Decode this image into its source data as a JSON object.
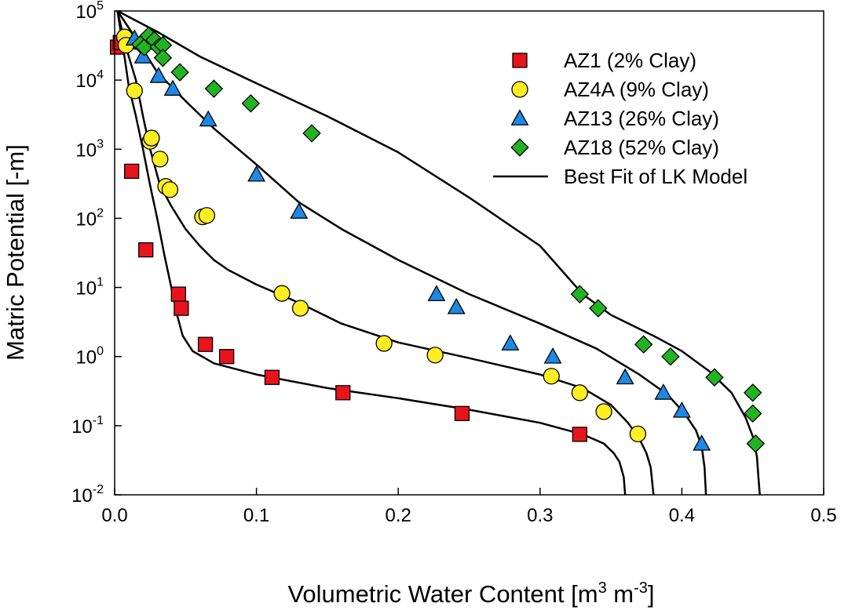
{
  "chart_data": {
    "type": "scatter",
    "title": "",
    "xlabel": {
      "text": "Volumetric Water Content [m",
      "sup1": "3",
      "mid": " m",
      "sup2": "-3",
      "end": "]"
    },
    "ylabel": "Matric Potential [-m]",
    "xlim": [
      0.0,
      0.5
    ],
    "ylim_log10": [
      -2,
      5
    ],
    "y_scale": "log",
    "grid": false,
    "legend_position": "top-right",
    "x_ticks": [
      {
        "value": 0.0,
        "label": "0.0"
      },
      {
        "value": 0.1,
        "label": "0.1"
      },
      {
        "value": 0.2,
        "label": "0.2"
      },
      {
        "value": 0.3,
        "label": "0.3"
      },
      {
        "value": 0.4,
        "label": "0.4"
      },
      {
        "value": 0.5,
        "label": "0.5"
      }
    ],
    "y_ticks": [
      {
        "exp": 5,
        "base": "10",
        "sup": "5"
      },
      {
        "exp": 4,
        "base": "10",
        "sup": "4"
      },
      {
        "exp": 3,
        "base": "10",
        "sup": "3"
      },
      {
        "exp": 2,
        "base": "10",
        "sup": "2"
      },
      {
        "exp": 1,
        "base": "10",
        "sup": "1"
      },
      {
        "exp": 0,
        "base": "10",
        "sup": "0"
      },
      {
        "exp": -1,
        "base": "10",
        "sup": "-1"
      },
      {
        "exp": -2,
        "base": "10",
        "sup": "-2"
      }
    ],
    "series": [
      {
        "name": "AZ1 (2% Clay)",
        "marker": "square",
        "color": "#e8141c",
        "points": [
          [
            0.002,
            30000
          ],
          [
            0.004,
            35000
          ],
          [
            0.012,
            480
          ],
          [
            0.022,
            35
          ],
          [
            0.045,
            8
          ],
          [
            0.047,
            5
          ],
          [
            0.064,
            1.5
          ],
          [
            0.079,
            1.0
          ],
          [
            0.111,
            0.5
          ],
          [
            0.161,
            0.3
          ],
          [
            0.245,
            0.15
          ],
          [
            0.328,
            0.075
          ]
        ]
      },
      {
        "name": "AZ4A (9% Clay)",
        "marker": "circle",
        "color": "#ffee22",
        "points": [
          [
            0.007,
            42000
          ],
          [
            0.008,
            32000
          ],
          [
            0.014,
            7000
          ],
          [
            0.025,
            1300
          ],
          [
            0.026,
            1450
          ],
          [
            0.032,
            720
          ],
          [
            0.036,
            290
          ],
          [
            0.039,
            260
          ],
          [
            0.062,
            105
          ],
          [
            0.065,
            110
          ],
          [
            0.118,
            8.2
          ],
          [
            0.131,
            5.0
          ],
          [
            0.19,
            1.55
          ],
          [
            0.226,
            1.05
          ],
          [
            0.308,
            0.52
          ],
          [
            0.328,
            0.3
          ],
          [
            0.345,
            0.16
          ],
          [
            0.369,
            0.076
          ]
        ]
      },
      {
        "name": "AZ13 (26% Clay)",
        "marker": "triangle",
        "color": "#1e88e5",
        "points": [
          [
            0.014,
            40000
          ],
          [
            0.019,
            35000
          ],
          [
            0.02,
            22000
          ],
          [
            0.031,
            11500
          ],
          [
            0.041,
            7500
          ],
          [
            0.066,
            2700
          ],
          [
            0.1,
            430
          ],
          [
            0.13,
            125
          ],
          [
            0.227,
            8.0
          ],
          [
            0.241,
            5.2
          ],
          [
            0.279,
            1.55
          ],
          [
            0.309,
            1.0
          ],
          [
            0.36,
            0.5
          ],
          [
            0.387,
            0.3
          ],
          [
            0.4,
            0.165
          ],
          [
            0.414,
            0.055
          ]
        ]
      },
      {
        "name": "AZ18 (52% Clay)",
        "marker": "diamond",
        "color": "#22b322",
        "points": [
          [
            0.018,
            33000
          ],
          [
            0.021,
            30000
          ],
          [
            0.024,
            44000
          ],
          [
            0.028,
            38000
          ],
          [
            0.031,
            30000
          ],
          [
            0.034,
            32000
          ],
          [
            0.034,
            21000
          ],
          [
            0.046,
            13000
          ],
          [
            0.07,
            7500
          ],
          [
            0.096,
            4600
          ],
          [
            0.139,
            1700
          ],
          [
            0.328,
            8.0
          ],
          [
            0.341,
            5.0
          ],
          [
            0.373,
            1.5
          ],
          [
            0.392,
            1.0
          ],
          [
            0.423,
            0.5
          ],
          [
            0.45,
            0.3
          ],
          [
            0.45,
            0.15
          ],
          [
            0.452,
            0.055
          ]
        ]
      }
    ],
    "fit_curves": {
      "name": "Best Fit of LK Model",
      "color": "#000000",
      "curves": [
        [
          [
            0.002,
            100000
          ],
          [
            0.006,
            30000
          ],
          [
            0.01,
            8000
          ],
          [
            0.015,
            3000
          ],
          [
            0.02,
            1000
          ],
          [
            0.025,
            300
          ],
          [
            0.03,
            100
          ],
          [
            0.035,
            30
          ],
          [
            0.04,
            10
          ],
          [
            0.044,
            4
          ],
          [
            0.048,
            2
          ],
          [
            0.055,
            1.2
          ],
          [
            0.07,
            0.8
          ],
          [
            0.1,
            0.55
          ],
          [
            0.15,
            0.35
          ],
          [
            0.2,
            0.25
          ],
          [
            0.25,
            0.17
          ],
          [
            0.3,
            0.11
          ],
          [
            0.33,
            0.075
          ],
          [
            0.345,
            0.055
          ],
          [
            0.352,
            0.04
          ],
          [
            0.356,
            0.03
          ],
          [
            0.359,
            0.018
          ],
          [
            0.36,
            0.01
          ]
        ],
        [
          [
            0.002,
            100000
          ],
          [
            0.008,
            30000
          ],
          [
            0.015,
            10000
          ],
          [
            0.02,
            3000
          ],
          [
            0.025,
            1000
          ],
          [
            0.032,
            300
          ],
          [
            0.04,
            150
          ],
          [
            0.05,
            70
          ],
          [
            0.06,
            40
          ],
          [
            0.07,
            25
          ],
          [
            0.08,
            18
          ],
          [
            0.1,
            11
          ],
          [
            0.13,
            6
          ],
          [
            0.16,
            3
          ],
          [
            0.2,
            1.6
          ],
          [
            0.25,
            0.95
          ],
          [
            0.3,
            0.55
          ],
          [
            0.33,
            0.35
          ],
          [
            0.35,
            0.2
          ],
          [
            0.362,
            0.11
          ],
          [
            0.37,
            0.065
          ],
          [
            0.375,
            0.04
          ],
          [
            0.378,
            0.025
          ],
          [
            0.38,
            0.01
          ]
        ],
        [
          [
            0.002,
            100000
          ],
          [
            0.015,
            40000
          ],
          [
            0.03,
            13000
          ],
          [
            0.05,
            5000
          ],
          [
            0.07,
            2000
          ],
          [
            0.1,
            600
          ],
          [
            0.13,
            170
          ],
          [
            0.16,
            70
          ],
          [
            0.2,
            25
          ],
          [
            0.25,
            8
          ],
          [
            0.3,
            3
          ],
          [
            0.34,
            1.3
          ],
          [
            0.37,
            0.55
          ],
          [
            0.39,
            0.28
          ],
          [
            0.402,
            0.15
          ],
          [
            0.41,
            0.085
          ],
          [
            0.414,
            0.05
          ],
          [
            0.416,
            0.025
          ],
          [
            0.417,
            0.01
          ]
        ],
        [
          [
            0.002,
            100000
          ],
          [
            0.03,
            50000
          ],
          [
            0.06,
            22000
          ],
          [
            0.1,
            9000
          ],
          [
            0.15,
            3000
          ],
          [
            0.2,
            900
          ],
          [
            0.25,
            200
          ],
          [
            0.3,
            40
          ],
          [
            0.33,
            8
          ],
          [
            0.35,
            4
          ],
          [
            0.38,
            2
          ],
          [
            0.4,
            1.2
          ],
          [
            0.42,
            0.6
          ],
          [
            0.435,
            0.3
          ],
          [
            0.445,
            0.13
          ],
          [
            0.45,
            0.07
          ],
          [
            0.453,
            0.035
          ],
          [
            0.454,
            0.018
          ],
          [
            0.455,
            0.01
          ]
        ]
      ]
    }
  }
}
